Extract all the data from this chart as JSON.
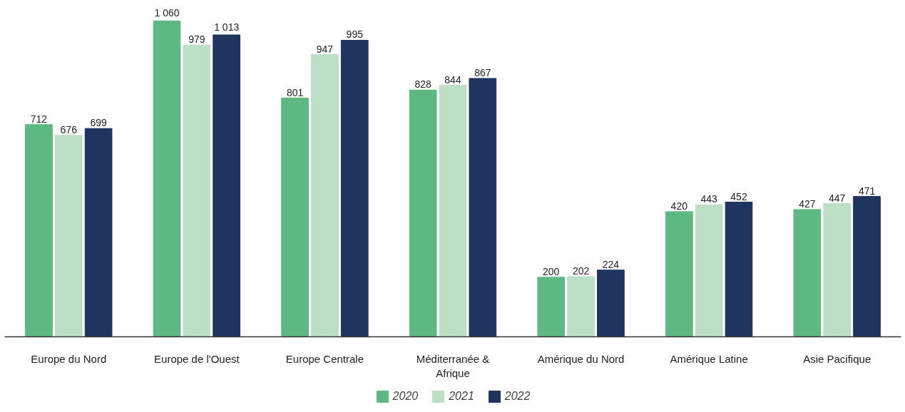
{
  "chart_data": {
    "type": "bar",
    "categories": [
      "Europe du Nord",
      "Europe de l'Ouest",
      "Europe Centrale",
      "Méditerranée & Afrique",
      "Amérique du Nord",
      "Amérique Latine",
      "Asie Pacifique"
    ],
    "series": [
      {
        "name": "2020",
        "color": "#5db882",
        "values": [
          712,
          1060,
          801,
          828,
          200,
          420,
          427
        ],
        "value_labels": [
          "712",
          "1 060",
          "801",
          "828",
          "200",
          "420",
          "427"
        ]
      },
      {
        "name": "2021",
        "color": "#bcdfc5",
        "values": [
          676,
          979,
          947,
          844,
          202,
          443,
          447
        ],
        "value_labels": [
          "676",
          "979",
          "947",
          "844",
          "202",
          "443",
          "447"
        ]
      },
      {
        "name": "2022",
        "color": "#1f3560",
        "values": [
          699,
          1013,
          995,
          867,
          224,
          452,
          471
        ],
        "value_labels": [
          "699",
          "1 013",
          "995",
          "867",
          "224",
          "452",
          "471"
        ]
      }
    ],
    "legend": "bottom"
  }
}
